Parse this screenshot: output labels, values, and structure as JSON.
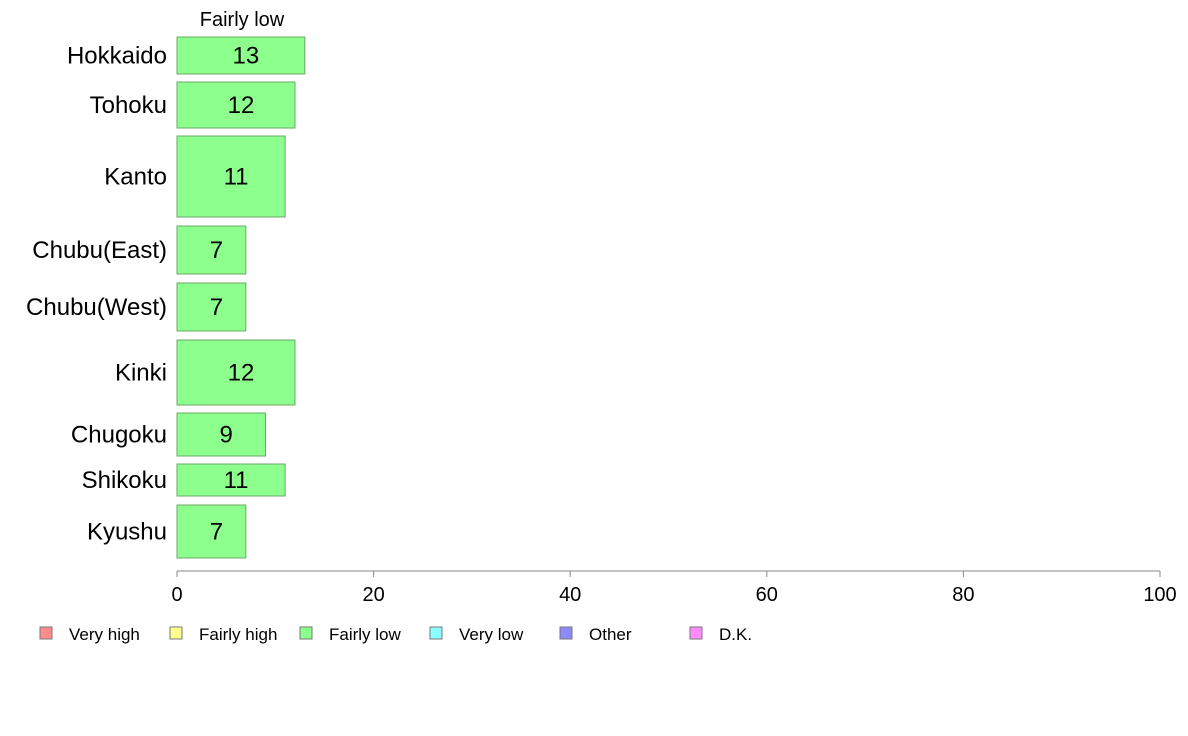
{
  "chart_data": {
    "type": "bar",
    "orientation": "horizontal",
    "panel_title": "Fairly low",
    "categories": [
      "Hokkaido",
      "Tohoku",
      "Kanto",
      "Chubu(East)",
      "Chubu(West)",
      "Kinki",
      "Chugoku",
      "Shikoku",
      "Kyushu"
    ],
    "series": [
      {
        "name": "Fairly low",
        "color": "#8cff8c",
        "values": [
          13,
          12,
          11,
          7,
          7,
          12,
          9,
          11,
          7
        ],
        "labels": [
          "13",
          "12",
          "11",
          "7",
          "7",
          "12",
          "9",
          "11",
          "7"
        ]
      }
    ],
    "xlim": [
      0,
      100
    ],
    "x_ticks": [
      "0",
      "20",
      "40",
      "60",
      "80",
      "100"
    ],
    "grid": false,
    "legend_position": "bottom",
    "legend": [
      {
        "label": "Very high",
        "color": "#ff8c8c"
      },
      {
        "label": "Fairly high",
        "color": "#ffff8c"
      },
      {
        "label": "Fairly low",
        "color": "#8cff8c"
      },
      {
        "label": "Very low",
        "color": "#8cffff"
      },
      {
        "label": "Other",
        "color": "#8c8cff"
      },
      {
        "label": "D.K.",
        "color": "#ff8cff"
      }
    ]
  }
}
